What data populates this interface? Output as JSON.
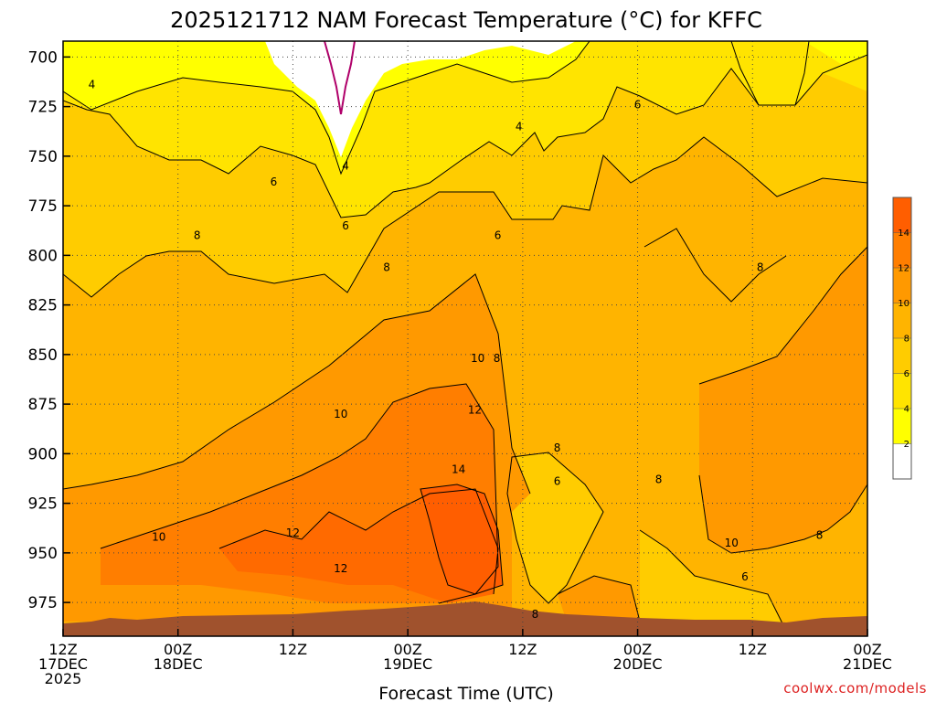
{
  "chart_data": {
    "type": "heatmap",
    "title": "2025121712 NAM Forecast Temperature (°C) for KFFC",
    "xlabel": "Forecast Time (UTC)",
    "credit": "coolwx.com/models",
    "y_axis": {
      "ticks": [
        "700",
        "725",
        "750",
        "775",
        "800",
        "825",
        "850",
        "875",
        "900",
        "925",
        "950",
        "975"
      ],
      "range": [
        692,
        992
      ],
      "scale": "linear"
    },
    "x_axis": {
      "range_hours": [
        0,
        84
      ],
      "ticks": [
        {
          "hour": 0,
          "l1": "12Z",
          "l2": "17DEC",
          "l3": "2025"
        },
        {
          "hour": 12,
          "l1": "00Z",
          "l2": "18DEC",
          "l3": ""
        },
        {
          "hour": 24,
          "l1": "12Z",
          "l2": "",
          "l3": ""
        },
        {
          "hour": 36,
          "l1": "00Z",
          "l2": "19DEC",
          "l3": ""
        },
        {
          "hour": 48,
          "l1": "12Z",
          "l2": "",
          "l3": ""
        },
        {
          "hour": 60,
          "l1": "00Z",
          "l2": "20DEC",
          "l3": ""
        },
        {
          "hour": 72,
          "l1": "12Z",
          "l2": "",
          "l3": ""
        },
        {
          "hour": 84,
          "l1": "00Z",
          "l2": "21DEC",
          "l3": ""
        }
      ]
    },
    "grid": true,
    "legend": "right",
    "colorbar": {
      "levels": [
        0,
        2,
        4,
        6,
        8,
        10,
        12,
        14,
        16
      ],
      "labels": [
        "2",
        "4",
        "6",
        "8",
        "10",
        "12",
        "14"
      ],
      "colors": [
        "#ffffff",
        "#ffff00",
        "#ffe400",
        "#ffcc00",
        "#ffb400",
        "#ff9900",
        "#ff7e00",
        "#ff5e00"
      ]
    },
    "terrain_color": "#a0522d",
    "contour_color": "#000000",
    "freezing_line_color": "#b0006a",
    "contour_labels": [
      {
        "text": "4",
        "hour": 3.0,
        "p": 714
      },
      {
        "text": "4",
        "hour": 29.5,
        "p": 755
      },
      {
        "text": "4",
        "hour": 47.6,
        "p": 735
      },
      {
        "text": "6",
        "hour": 22.0,
        "p": 763
      },
      {
        "text": "6",
        "hour": 29.5,
        "p": 785
      },
      {
        "text": "6",
        "hour": 45.4,
        "p": 790
      },
      {
        "text": "6",
        "hour": 60.0,
        "p": 724
      },
      {
        "text": "6",
        "hour": 51.6,
        "p": 914
      },
      {
        "text": "6",
        "hour": 71.2,
        "p": 962
      },
      {
        "text": "8",
        "hour": 14.0,
        "p": 790
      },
      {
        "text": "8",
        "hour": 33.8,
        "p": 806
      },
      {
        "text": "8",
        "hour": 45.3,
        "p": 852
      },
      {
        "text": "8",
        "hour": 51.6,
        "p": 897
      },
      {
        "text": "8",
        "hour": 62.2,
        "p": 913
      },
      {
        "text": "8",
        "hour": 72.8,
        "p": 806
      },
      {
        "text": "8",
        "hour": 79.0,
        "p": 941
      },
      {
        "text": "8",
        "hour": 49.3,
        "p": 981
      },
      {
        "text": "10",
        "hour": 10.0,
        "p": 942
      },
      {
        "text": "10",
        "hour": 29.0,
        "p": 880
      },
      {
        "text": "10",
        "hour": 43.3,
        "p": 852
      },
      {
        "text": "10",
        "hour": 69.8,
        "p": 945
      },
      {
        "text": "12",
        "hour": 24.0,
        "p": 940
      },
      {
        "text": "12",
        "hour": 29.0,
        "p": 958
      },
      {
        "text": "12",
        "hour": 43.0,
        "p": 878
      },
      {
        "text": "14",
        "hour": 41.3,
        "p": 908
      }
    ]
  }
}
